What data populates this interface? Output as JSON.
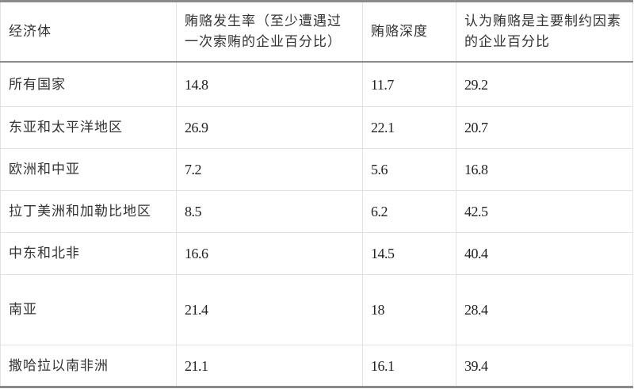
{
  "table": {
    "headers": [
      "经济体",
      "贿赂发生率（至少遭遇过一次索贿的企业百分比）",
      "贿赂深度",
      "认为贿赂是主要制约因素的企业百分比"
    ],
    "rows": [
      [
        "所有国家",
        "14.8",
        "11.7",
        "29.2"
      ],
      [
        "东亚和太平洋地区",
        "26.9",
        "22.1",
        "20.7"
      ],
      [
        "欧洲和中亚",
        "7.2",
        "5.6",
        "16.8"
      ],
      [
        "拉丁美洲和加勒比地区",
        "8.5",
        "6.2",
        "42.5"
      ],
      [
        "中东和北非",
        "16.6",
        "14.5",
        "40.4"
      ],
      [
        "南亚",
        "21.4",
        "18",
        "28.4"
      ],
      [
        "撒哈拉以南非洲",
        "21.1",
        "16.1",
        "39.4"
      ]
    ]
  }
}
